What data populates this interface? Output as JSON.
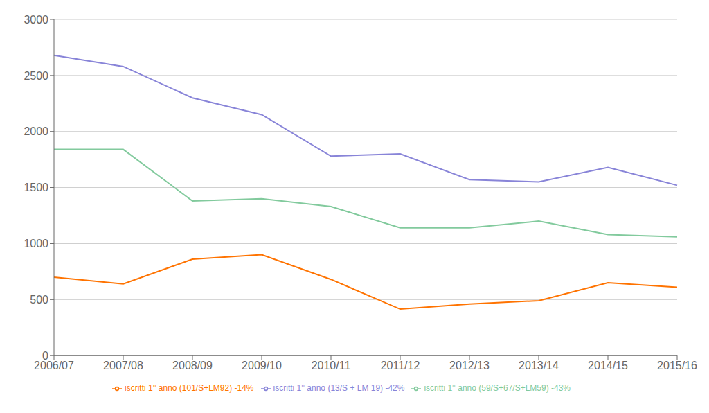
{
  "chart_data": {
    "type": "line",
    "categories": [
      "2006/07",
      "2007/08",
      "2008/09",
      "2009/10",
      "2010/11",
      "2011/12",
      "2012/13",
      "2013/14",
      "2014/15",
      "2015/16"
    ],
    "series": [
      {
        "name": "iscritti 1° anno (13/S + LM 19) -42%",
        "values": [
          2680,
          2580,
          2300,
          2150,
          1780,
          1800,
          1570,
          1550,
          1680,
          1520
        ]
      },
      {
        "name": "iscritti 1° anno (59/S+67/S+LM59) -43%",
        "values": [
          1840,
          1840,
          1380,
          1400,
          1330,
          1140,
          1140,
          1200,
          1080,
          1060
        ]
      },
      {
        "name": "iscritti 1° anno (101/S+LM92) -14%",
        "values": [
          700,
          640,
          860,
          900,
          680,
          415,
          460,
          490,
          650,
          610
        ]
      }
    ],
    "ylim": [
      0,
      3000
    ],
    "yticks": [
      0,
      500,
      1000,
      1500,
      2000,
      2500,
      3000
    ],
    "grid": true,
    "legend": "bottom"
  }
}
